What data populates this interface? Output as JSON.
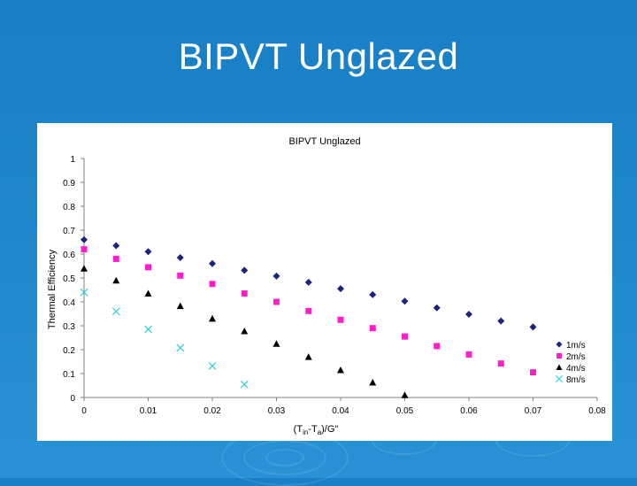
{
  "slide": {
    "title": "BIPVT Unglazed"
  },
  "chart_data": {
    "type": "scatter",
    "title": "BIPVT Unglazed",
    "xlabel_parts": [
      "(T",
      "in",
      "-T",
      "a",
      ")/G\""
    ],
    "ylabel": "Thermal Efficiency",
    "xlim": [
      0,
      0.08
    ],
    "ylim": [
      0,
      1
    ],
    "x_ticks": [
      "0",
      "0.01",
      "0.02",
      "0.03",
      "0.04",
      "0.05",
      "0.06",
      "0.07",
      "0.08"
    ],
    "y_ticks": [
      "0",
      "0.1",
      "0.2",
      "0.3",
      "0.4",
      "0.5",
      "0.6",
      "0.7",
      "0.8",
      "0.9",
      "1"
    ],
    "legend_position": "bottom-right",
    "series": [
      {
        "name": "1m/s",
        "marker": "diamond",
        "color": "#1a237e",
        "points": [
          [
            0,
            0.66
          ],
          [
            0.005,
            0.635
          ],
          [
            0.01,
            0.61
          ],
          [
            0.015,
            0.585
          ],
          [
            0.02,
            0.56
          ],
          [
            0.025,
            0.532
          ],
          [
            0.03,
            0.508
          ],
          [
            0.035,
            0.482
          ],
          [
            0.04,
            0.455
          ],
          [
            0.045,
            0.43
          ],
          [
            0.05,
            0.403
          ],
          [
            0.055,
            0.375
          ],
          [
            0.06,
            0.348
          ],
          [
            0.065,
            0.32
          ],
          [
            0.07,
            0.295
          ]
        ]
      },
      {
        "name": "2m/s",
        "marker": "square",
        "color": "#ff1fc8",
        "points": [
          [
            0,
            0.62
          ],
          [
            0.005,
            0.58
          ],
          [
            0.01,
            0.545
          ],
          [
            0.015,
            0.51
          ],
          [
            0.02,
            0.475
          ],
          [
            0.025,
            0.435
          ],
          [
            0.03,
            0.4
          ],
          [
            0.035,
            0.362
          ],
          [
            0.04,
            0.325
          ],
          [
            0.045,
            0.29
          ],
          [
            0.05,
            0.255
          ],
          [
            0.055,
            0.215
          ],
          [
            0.06,
            0.18
          ],
          [
            0.065,
            0.142
          ],
          [
            0.07,
            0.105
          ]
        ]
      },
      {
        "name": "4m/s",
        "marker": "triangle",
        "color": "#000000",
        "points": [
          [
            0,
            0.54
          ],
          [
            0.005,
            0.49
          ],
          [
            0.01,
            0.435
          ],
          [
            0.015,
            0.383
          ],
          [
            0.02,
            0.33
          ],
          [
            0.025,
            0.278
          ],
          [
            0.03,
            0.225
          ],
          [
            0.035,
            0.17
          ],
          [
            0.04,
            0.115
          ],
          [
            0.045,
            0.063
          ],
          [
            0.05,
            0.01
          ]
        ]
      },
      {
        "name": "8m/s",
        "marker": "x",
        "color": "#33ccdd",
        "points": [
          [
            0,
            0.44
          ],
          [
            0.005,
            0.36
          ],
          [
            0.01,
            0.285
          ],
          [
            0.015,
            0.208
          ],
          [
            0.02,
            0.132
          ],
          [
            0.025,
            0.055
          ]
        ]
      }
    ]
  }
}
